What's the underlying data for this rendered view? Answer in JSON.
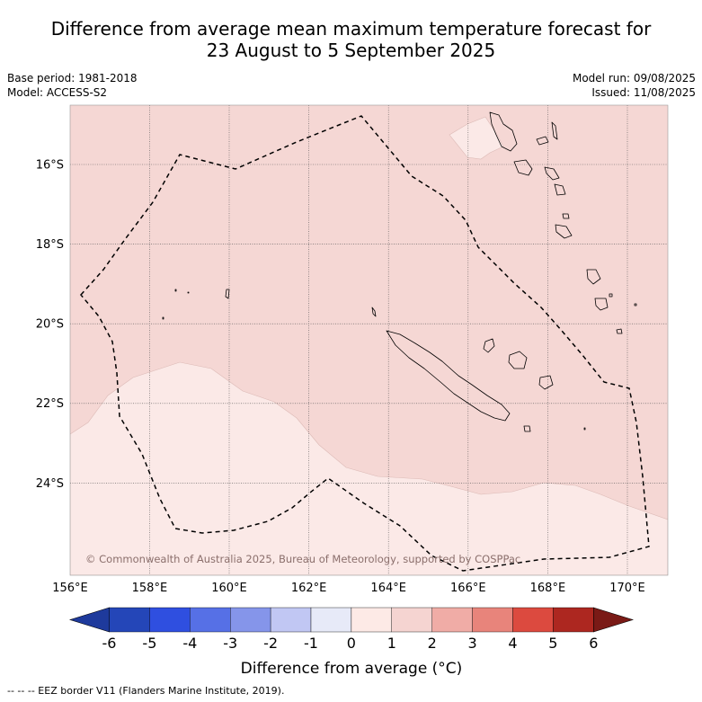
{
  "title_line1": "Difference from average mean maximum temperature forecast for",
  "title_line2": "23 August to 5 September 2025",
  "base_period": "Base period: 1981-2018",
  "model": "Model: ACCESS-S2",
  "model_run": "Model run: 09/08/2025",
  "issued": "Issued: 11/08/2025",
  "copyright": "© Commonwealth of Australia 2025, Bureau of Meteorology, supported by COSPPac",
  "lat_labels": [
    "16°S",
    "18°S",
    "20°S",
    "22°S",
    "24°S"
  ],
  "lon_labels": [
    "156°E",
    "158°E",
    "160°E",
    "162°E",
    "164°E",
    "166°E",
    "168°E",
    "170°E"
  ],
  "colorbar": {
    "ticks": [
      "-6",
      "-5",
      "-4",
      "-3",
      "-2",
      "-1",
      "0",
      "1",
      "2",
      "3",
      "4",
      "5",
      "6"
    ],
    "colors": [
      "#1e3a9c",
      "#2446b8",
      "#2f4fe0",
      "#5670e6",
      "#8595ea",
      "#c1c7f3",
      "#e7eaf8",
      "#fdeae6",
      "#f5d4d1",
      "#f0aca6",
      "#e8847b",
      "#dc4a3f",
      "#ad2720",
      "#7a1a16"
    ],
    "label": "Difference from average (°C)"
  },
  "legend_note": "-- -- -- EEZ border V11 (Flanders Marine Institute, 2019).",
  "map_colors": {
    "band_0_1": "#fbe9e7",
    "band_1_2": "#f5d7d4"
  }
}
